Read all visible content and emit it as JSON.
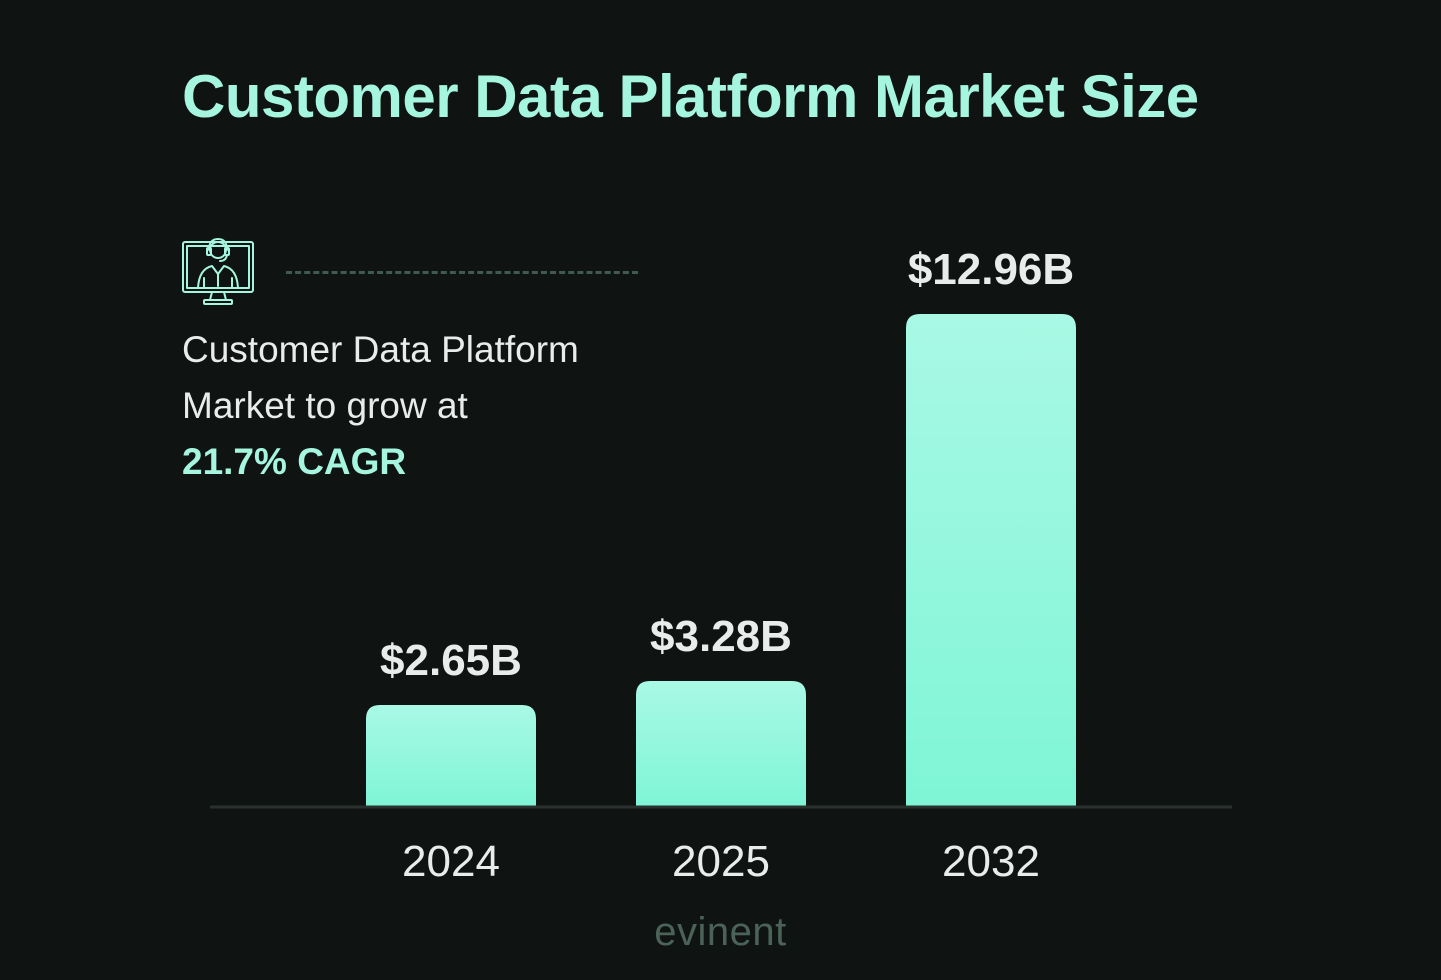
{
  "title": "Customer Data Platform Market Size",
  "callout": {
    "icon": "monitor-support-agent-icon",
    "line1": "Customer Data Platform",
    "line2": "Market to grow at",
    "highlight": "21.7% CAGR"
  },
  "brand": "evinent",
  "colors": {
    "background": "#0f1413",
    "accent": "#a6f5de",
    "bar_top": "#a9f9e5",
    "bar_bottom": "#7ff5d6",
    "text": "#e8ecea",
    "brand": "#4b6258"
  },
  "chart_data": {
    "type": "bar",
    "categories": [
      "2024",
      "2025",
      "2032"
    ],
    "values": [
      2.65,
      3.28,
      12.96
    ],
    "data_labels": [
      "$2.65B",
      "$3.28B",
      "$12.96B"
    ],
    "title": "Customer Data Platform Market Size",
    "xlabel": "",
    "ylabel": "",
    "unit": "$B",
    "grid": false,
    "legend": "none"
  }
}
